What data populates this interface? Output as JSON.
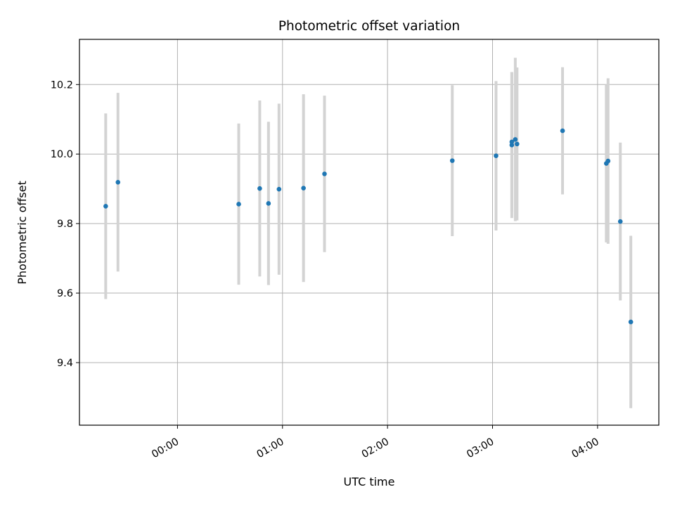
{
  "chart_data": {
    "type": "scatter",
    "title": "Photometric offset variation",
    "xlabel": "UTC time",
    "ylabel": "Photometric offset",
    "x_ticks": [
      "00:00",
      "01:00",
      "02:00",
      "03:00",
      "04:00"
    ],
    "y_ticks": [
      "9.4",
      "9.6",
      "9.8",
      "10.0",
      "10.2"
    ],
    "xlim": [
      "-00:56",
      "04:35"
    ],
    "ylim": [
      9.22,
      10.33
    ],
    "grid": true,
    "error_bar_color": "#d3d3d3",
    "point_color": "#1f77b4",
    "points": [
      {
        "x": "-00:41",
        "y": 9.85,
        "err": 0.267
      },
      {
        "x": "-00:34",
        "y": 9.919,
        "err": 0.257
      },
      {
        "x": "00:35",
        "y": 9.856,
        "err": 0.232
      },
      {
        "x": "00:47",
        "y": 9.901,
        "err": 0.253
      },
      {
        "x": "00:52",
        "y": 9.858,
        "err": 0.235
      },
      {
        "x": "00:58",
        "y": 9.899,
        "err": 0.246
      },
      {
        "x": "01:12",
        "y": 9.902,
        "err": 0.27
      },
      {
        "x": "01:24",
        "y": 9.943,
        "err": 0.225
      },
      {
        "x": "02:37",
        "y": 9.981,
        "err": 0.217
      },
      {
        "x": "03:02",
        "y": 9.995,
        "err": 0.215
      },
      {
        "x": "03:11",
        "y": 10.026,
        "err": 0.21
      },
      {
        "x": "03:11",
        "y": 10.035,
        "err": 0.2
      },
      {
        "x": "03:13",
        "y": 10.042,
        "err": 0.235
      },
      {
        "x": "03:14",
        "y": 10.029,
        "err": 0.22
      },
      {
        "x": "03:40",
        "y": 10.067,
        "err": 0.183
      },
      {
        "x": "04:05",
        "y": 9.973,
        "err": 0.227
      },
      {
        "x": "04:06",
        "y": 9.98,
        "err": 0.238
      },
      {
        "x": "04:13",
        "y": 9.806,
        "err": 0.227
      },
      {
        "x": "04:19",
        "y": 9.517,
        "err": 0.248
      }
    ]
  }
}
